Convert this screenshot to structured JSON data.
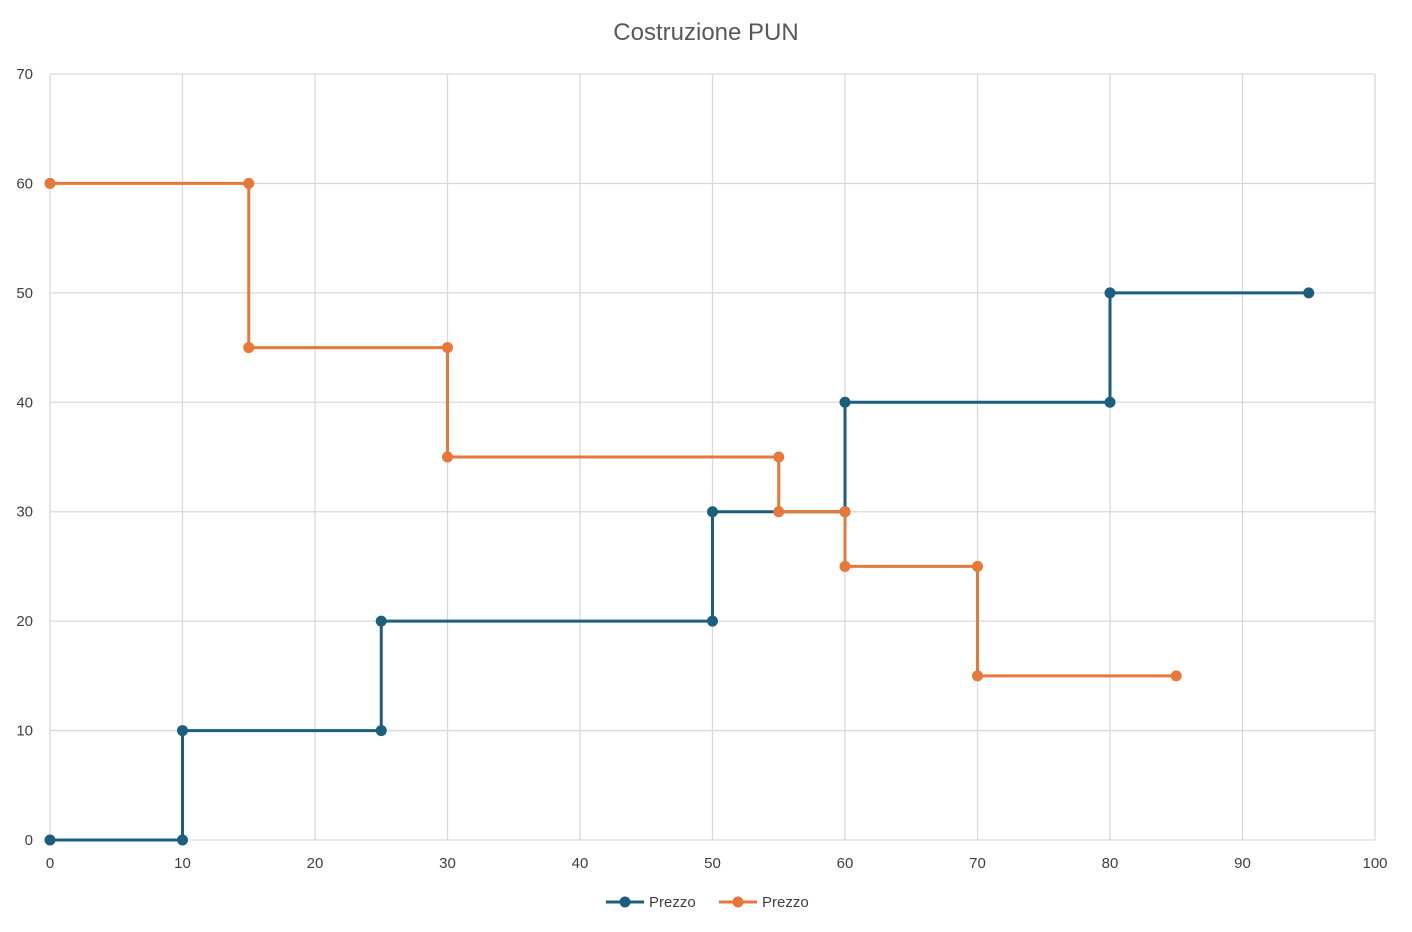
{
  "chart_data": {
    "type": "scatter",
    "title": "Costruzione PUN",
    "xlabel": "",
    "ylabel": "",
    "xlim": [
      0,
      100
    ],
    "ylim": [
      0,
      70
    ],
    "xticks": [
      0,
      10,
      20,
      30,
      40,
      50,
      60,
      70,
      80,
      90,
      100
    ],
    "yticks": [
      0,
      10,
      20,
      30,
      40,
      50,
      60,
      70
    ],
    "grid": true,
    "legend_position": "bottom",
    "series": [
      {
        "name": "Prezzo",
        "color": "#1b5e7e",
        "x": [
          0,
          10,
          10,
          25,
          25,
          50,
          50,
          60,
          60,
          80,
          80,
          95
        ],
        "y": [
          0,
          0,
          10,
          10,
          20,
          20,
          30,
          30,
          40,
          40,
          50,
          50
        ]
      },
      {
        "name": "Prezzo",
        "color": "#e8773a",
        "x": [
          0,
          15,
          15,
          30,
          30,
          55,
          55,
          60,
          60,
          70,
          70,
          85
        ],
        "y": [
          60,
          60,
          45,
          45,
          35,
          35,
          30,
          30,
          25,
          25,
          15,
          15
        ]
      }
    ]
  }
}
